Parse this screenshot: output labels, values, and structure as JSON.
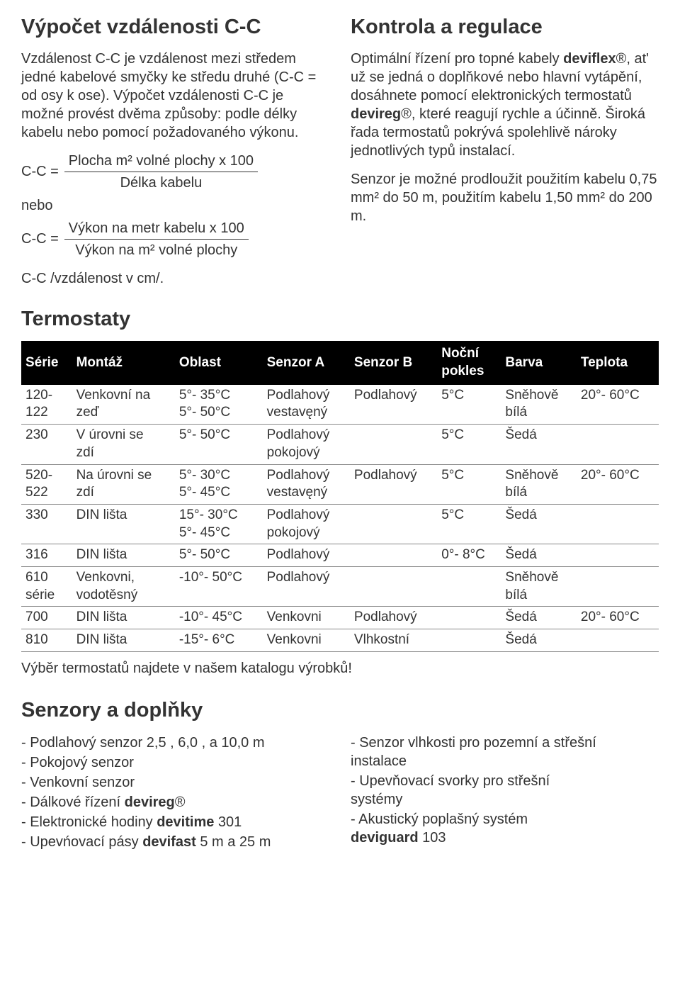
{
  "left": {
    "heading": "Výpočet vzdálenosti C-C",
    "paragraph": "Vzdálenost C-C je vzdálenost mezi středem jedné kabelové smyčky ke středu druhé (C-C = od osy k ose). Výpočet vzdálenosti C-C je možné provést dvěma způsoby: podle délky kabelu nebo pomocí požadovaného výkonu.",
    "cc_label": "C-C =",
    "formula1_num": "Plocha m² volné plochy x 100",
    "formula1_den": "Délka kabelu",
    "nebo": "nebo",
    "formula2_num": "Výkon na metr kabelu x 100",
    "formula2_den": "Výkon na m² volné plochy",
    "after": "C-C /vzdálenost v cm/."
  },
  "right": {
    "heading": "Kontrola a regulace",
    "p1a": "Optimální řízení pro topné kabely ",
    "p1b": "deviflex",
    "p1c": "®, at' už se jedná o doplňkové nebo hlavní vytápění, dosáhnete pomocí elektronických termostatů ",
    "p1d": "devireg",
    "p1e": "®, které reagují rychle a účinně. Široká řada termostatů pokrývá spolehlivě nároky jednotlivých typů instalací.",
    "p2": "Senzor je možné prodloužit použitím kabelu 0,75 mm² do 50 m, použitím kabelu 1,50 mm² do 200 m."
  },
  "thermostats": {
    "heading": "Termostaty",
    "headers": [
      "Série",
      "Montáž",
      "Oblast",
      "Senzor A",
      "Senzor B",
      "Noční pokles",
      "Barva",
      "Teplota"
    ],
    "rows": [
      [
        "120-\n122",
        "Venkovní na\nzeď",
        "5°- 35°C\n5°- 50°C",
        "Podlahový\nvestavęný",
        "Podlahový",
        "5°C",
        "Sněhově\nbílá",
        "20°- 60°C"
      ],
      [
        "230",
        "V úrovni se\nzdí",
        "5°- 50°C",
        "Podlahový\npokojový",
        "",
        "5°C",
        "Šedá",
        ""
      ],
      [
        "520-\n522",
        "Na úrovni se\nzdí",
        "5°- 30°C\n5°- 45°C",
        "Podlahový\nvestavęný",
        "Podlahový",
        "5°C",
        "Sněhově\nbílá",
        "20°- 60°C"
      ],
      [
        "330",
        "DIN lišta",
        "15°- 30°C\n5°- 45°C",
        "Podlahový\npokojový",
        "",
        "5°C",
        "Šedá",
        ""
      ],
      [
        "316",
        "DIN lišta",
        "5°- 50°C",
        "Podlahový",
        "",
        "0°- 8°C",
        "Šedá",
        ""
      ],
      [
        "610\nsérie",
        "Venkovni,\nvodotěsný",
        "-10°- 50°C",
        "Podlahový",
        "",
        "",
        "Sněhově\nbílá",
        ""
      ],
      [
        "700",
        "DIN lišta",
        "-10°- 45°C",
        "Venkovni",
        "Podlahový",
        "",
        "Šedá",
        "20°- 60°C"
      ],
      [
        "810",
        "DIN lišta",
        "-15°- 6°C",
        "Venkovni",
        "Vlhkostní",
        "",
        "Šedá",
        ""
      ]
    ],
    "note": "Výběr termostatů najdete v našem katalogu výrobků!"
  },
  "sensors": {
    "heading": "Senzory a doplňky",
    "left_items": [
      {
        "pre": "- Podlahový senzor 2,5 , 6,0 , a 10,0 m"
      },
      {
        "pre": "- Pokojový senzor"
      },
      {
        "pre": "- Venkovní senzor"
      },
      {
        "pre": "- Dálkové  řízení ",
        "bold": "devireg",
        "post": "®"
      },
      {
        "pre": "- Elektronické hodiny ",
        "bold": "devitime",
        "post": " 301"
      },
      {
        "pre": "- Upevńovací pásy ",
        "bold": "devifast",
        "post": " 5 m a 25 m"
      }
    ],
    "right_items": [
      {
        "pre": "- Senzor vlhkosti pro pozemní a střešní\n  instalace"
      },
      {
        "pre": "- Upevňovací svorky pro střešní\n  systémy"
      },
      {
        "pre": "- Akustický poplašný systém\n  ",
        "bold": "deviguard",
        "post": " 103"
      }
    ]
  }
}
